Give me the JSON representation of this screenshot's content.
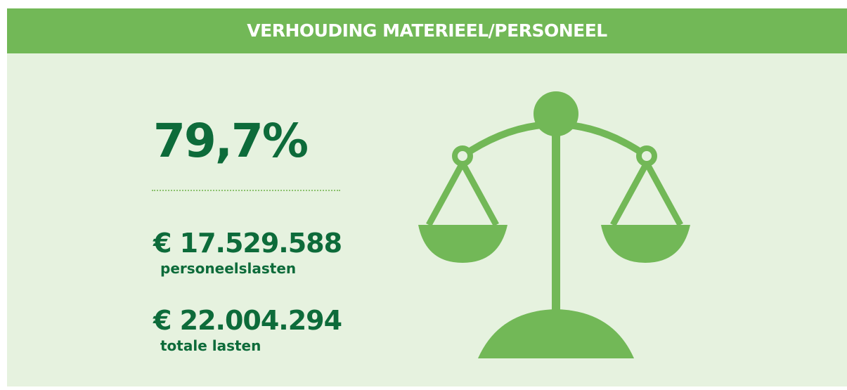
{
  "header": {
    "title": "VERHOUDING MATERIEEL/PERSONEEL"
  },
  "stats": {
    "ratio": "79,7%",
    "items": [
      {
        "amount": "€ 17.529.588",
        "label": "personeelslasten"
      },
      {
        "amount": "€ 22.004.294",
        "label": "totale lasten"
      }
    ]
  }
}
